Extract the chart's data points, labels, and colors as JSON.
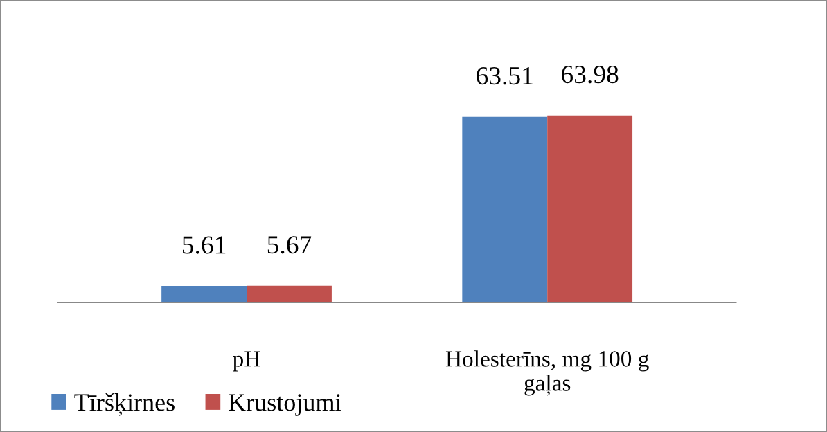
{
  "chart_data": {
    "type": "bar",
    "categories": [
      "pH",
      "Holesterīns, mg 100 g\ngaļas"
    ],
    "series": [
      {
        "name": "Tīršķirnes",
        "color": "#4f81bd",
        "values": [
          5.61,
          63.51
        ]
      },
      {
        "name": "Krustojumi",
        "color": "#c0504d",
        "values": [
          5.67,
          63.98
        ]
      }
    ],
    "data_labels": true,
    "legend": "bottom left",
    "tick_labels": "x"
  }
}
